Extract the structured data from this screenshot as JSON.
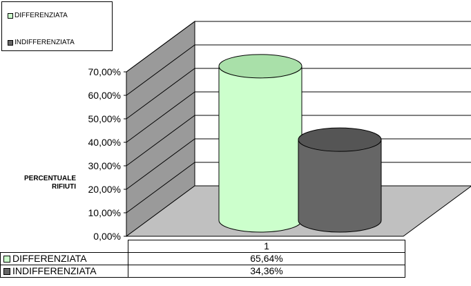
{
  "chart_data": {
    "type": "bar",
    "style": "3d-cylinder",
    "categories": [
      "1"
    ],
    "series": [
      {
        "name": "DIFFERENZIATA",
        "values": [
          65.64
        ],
        "value_label": "65,64%",
        "color": "#ccffcc"
      },
      {
        "name": "INDIFFERENZIATA",
        "values": [
          34.36
        ],
        "value_label": "34,36%",
        "color": "#666666"
      }
    ],
    "ylabel": "PERCENTUALE RIFIUTI",
    "ylim": [
      0,
      70
    ],
    "yticks": [
      "0,00%",
      "10,00%",
      "20,00%",
      "30,00%",
      "40,00%",
      "50,00%",
      "60,00%",
      "70,00%"
    ],
    "grid": true,
    "legend": "top-left",
    "data_table": true
  }
}
